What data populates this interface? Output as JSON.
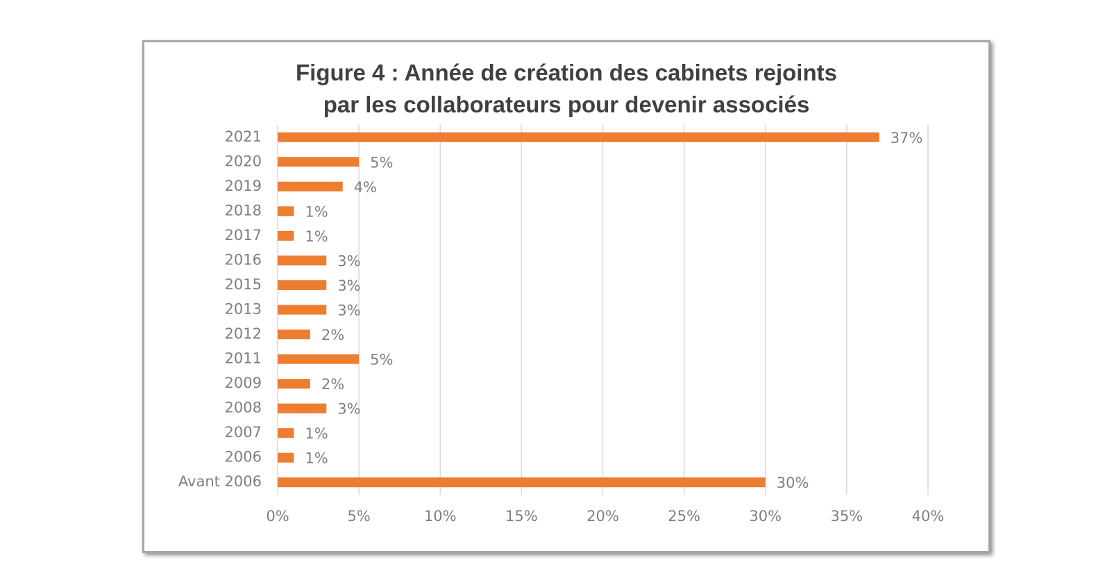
{
  "chart_data": {
    "type": "bar",
    "orientation": "horizontal",
    "title": "Figure 4 : Année de création des cabinets rejoints\npar les collaborateurs pour devenir associés",
    "categories": [
      "2021",
      "2020",
      "2019",
      "2018",
      "2017",
      "2016",
      "2015",
      "2013",
      "2012",
      "2011",
      "2009",
      "2008",
      "2007",
      "2006",
      "Avant 2006"
    ],
    "values": [
      37,
      5,
      4,
      1,
      1,
      3,
      3,
      3,
      2,
      5,
      2,
      3,
      1,
      1,
      30
    ],
    "value_labels": [
      "37%",
      "5%",
      "4%",
      "1%",
      "1%",
      "3%",
      "3%",
      "3%",
      "2%",
      "5%",
      "2%",
      "3%",
      "1%",
      "1%",
      "30%"
    ],
    "color": "#ed7d31",
    "xlim": [
      0,
      40
    ],
    "xticks": [
      {
        "value": 0,
        "label": "0%"
      },
      {
        "value": 5,
        "label": "5%"
      },
      {
        "value": 10,
        "label": "10%"
      },
      {
        "value": 15,
        "label": "15%"
      },
      {
        "value": 20,
        "label": "20%"
      },
      {
        "value": 25,
        "label": "25%"
      },
      {
        "value": 30,
        "label": "30%"
      },
      {
        "value": 35,
        "label": "35%"
      },
      {
        "value": 40,
        "label": "40%"
      }
    ],
    "grid": true
  }
}
